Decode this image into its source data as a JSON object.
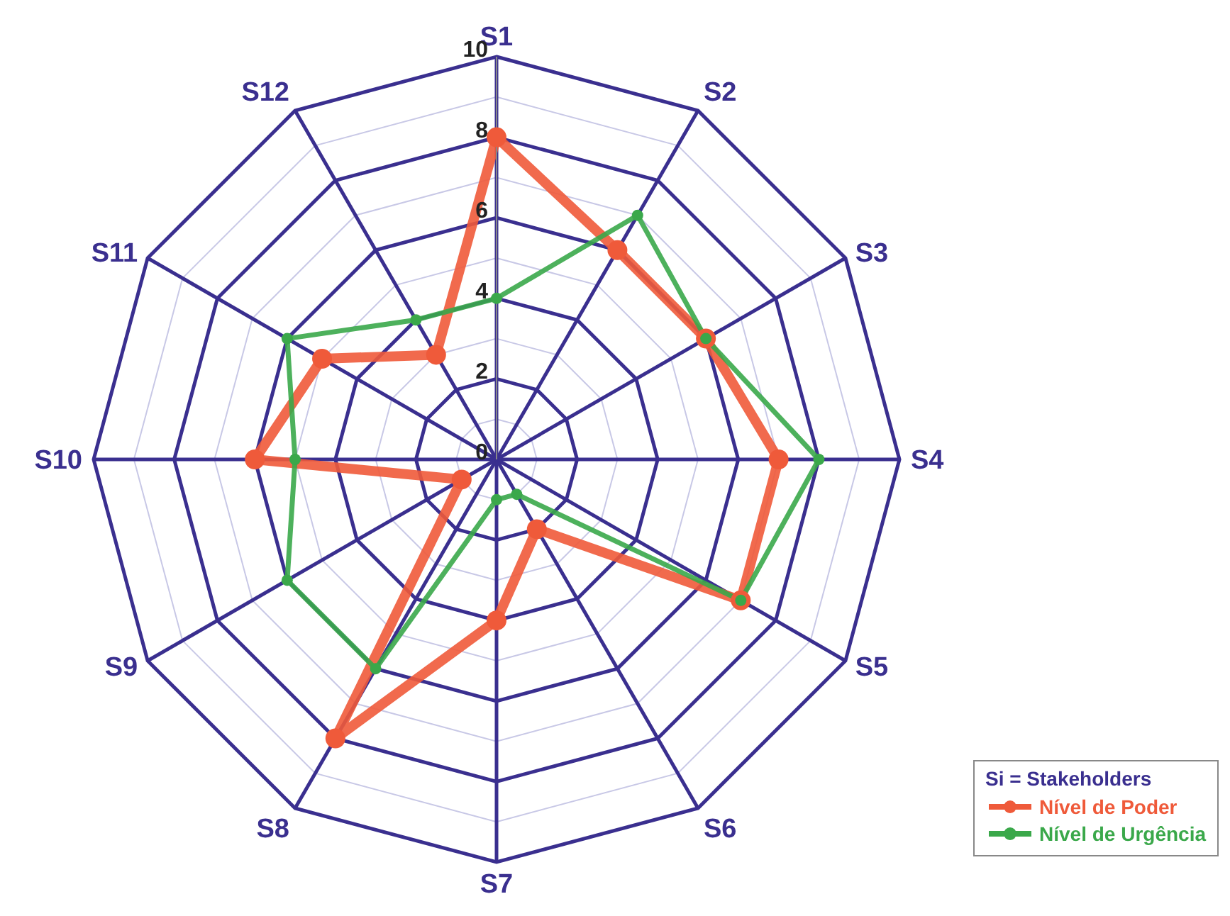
{
  "chart_data": {
    "type": "radar",
    "legend_title": "Si = Stakeholders",
    "categories": [
      "S1",
      "S2",
      "S3",
      "S4",
      "S5",
      "S6",
      "S7",
      "S8",
      "S9",
      "S10",
      "S11",
      "S12"
    ],
    "series": [
      {
        "name": "Nível de Poder",
        "color": "#ef5a3a",
        "values": [
          8,
          6,
          6,
          7,
          7,
          2,
          4,
          8,
          1,
          6,
          5,
          3
        ]
      },
      {
        "name": "Nível de Urgência",
        "color": "#3aa84a",
        "values": [
          4,
          7,
          6,
          8,
          7,
          1,
          1,
          6,
          6,
          5,
          6,
          4
        ]
      }
    ],
    "ylim": [
      0,
      10
    ],
    "yticks": [
      0,
      2,
      4,
      6,
      8,
      10
    ],
    "grid": true,
    "legend": "bottom right",
    "marker": "circle",
    "line_style": "solid"
  }
}
